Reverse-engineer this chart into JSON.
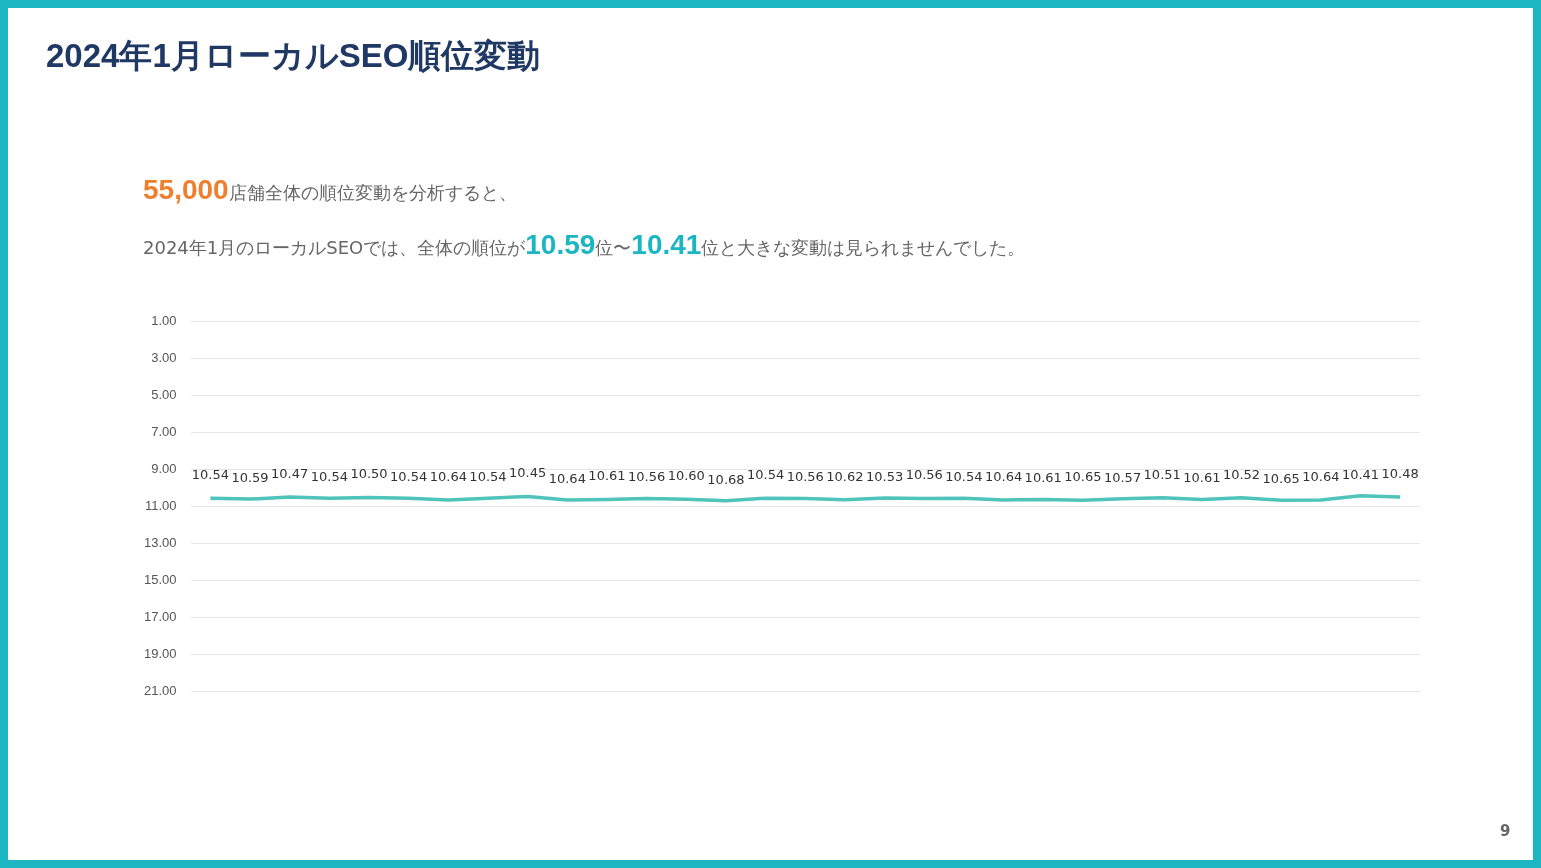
{
  "chart_data": {
    "type": "line",
    "title": "2024年1月ローカルSEO順位変動",
    "subtitle": "55,000店舗全体の順位変動を分析すると、\n2024年1月のローカルSEOでは、全体の順位が10.59位〜10.41位と大きな変動は見られませんでした。",
    "annotations": [
      "9"
    ],
    "categories": [
      null,
      null,
      null,
      null,
      null,
      null,
      null,
      null,
      null,
      null,
      null,
      null,
      null,
      null,
      null,
      null,
      null,
      null,
      null,
      null,
      null,
      null,
      null,
      null,
      null,
      null,
      null,
      null,
      null,
      null,
      null
    ],
    "series": [
      {
        "color": "#4fc4bb",
        "values": [
          10.54,
          10.59,
          10.47,
          10.54,
          10.5,
          10.54,
          10.64,
          10.54,
          10.45,
          10.64,
          10.61,
          10.56,
          10.6,
          10.68,
          10.54,
          10.56,
          10.62,
          10.53,
          10.56,
          10.54,
          10.64,
          10.61,
          10.65,
          10.57,
          10.51,
          10.61,
          10.52,
          10.65,
          10.64,
          10.41,
          10.48
        ],
        "value_labels": [
          "10.54",
          "10.59",
          "10.47",
          "10.54",
          "10.50",
          "10.54",
          "10.64",
          "10.54",
          "10.45",
          "10.64",
          "10.61",
          "10.56",
          "10.60",
          "10.68",
          "10.54",
          "10.56",
          "10.62",
          "10.53",
          "10.56",
          "10.54",
          "10.64",
          "10.61",
          "10.65",
          "10.57",
          "10.51",
          "10.61",
          "10.52",
          "10.65",
          "10.64",
          "10.41",
          "10.48"
        ]
      }
    ],
    "ylim": [
      21,
      1
    ],
    "yticks": [
      {
        "value": 1,
        "label": "1.00"
      },
      {
        "value": 3,
        "label": "3.00"
      },
      {
        "value": 5,
        "label": "5.00"
      },
      {
        "value": 7,
        "label": "7.00"
      },
      {
        "value": 9,
        "label": "9.00"
      },
      {
        "value": 11,
        "label": "11.00"
      },
      {
        "value": 13,
        "label": "13.00"
      },
      {
        "value": 15,
        "label": "15.00"
      },
      {
        "value": 17,
        "label": "17.00"
      },
      {
        "value": 19,
        "label": "19.00"
      },
      {
        "value": 21,
        "label": "21.00"
      }
    ],
    "grid": "y",
    "legend": false,
    "marker": "none",
    "line_style": "solid"
  }
}
